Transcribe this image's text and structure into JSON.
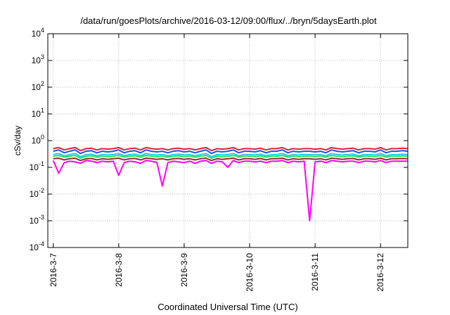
{
  "chart_data": {
    "type": "line",
    "title": "/data/run/goesPlots/archive/2016-03-12/09:00/flux/../bryn/5daysEarth.plot",
    "xlabel": "Coordinated Universal Time (UTC)",
    "ylabel": "cSv/day",
    "yscale": "log",
    "ylim": [
      0.0001,
      10000
    ],
    "xlim": [
      "2016-03-06T22:00",
      "2016-03-12T10:00"
    ],
    "grid": true,
    "legend": "none",
    "y_ticks": [
      {
        "base": "10",
        "exp": "-4",
        "value": 0.0001
      },
      {
        "base": "10",
        "exp": "-3",
        "value": 0.001
      },
      {
        "base": "10",
        "exp": "-2",
        "value": 0.01
      },
      {
        "base": "10",
        "exp": "-1",
        "value": 0.1
      },
      {
        "base": "10",
        "exp": "0",
        "value": 1
      },
      {
        "base": "10",
        "exp": "1",
        "value": 10
      },
      {
        "base": "10",
        "exp": "2",
        "value": 100
      },
      {
        "base": "10",
        "exp": "3",
        "value": 1000
      },
      {
        "base": "10",
        "exp": "4",
        "value": 10000
      }
    ],
    "x_ticks": [
      {
        "label": "2016-3-7",
        "date": "2016-03-07T00:00"
      },
      {
        "label": "2016-3-8",
        "date": "2016-03-08T00:00"
      },
      {
        "label": "2016-3-9",
        "date": "2016-03-09T00:00"
      },
      {
        "label": "2016-3-10",
        "date": "2016-03-10T00:00"
      },
      {
        "label": "2016-3-11",
        "date": "2016-03-11T00:00"
      },
      {
        "label": "2016-3-12",
        "date": "2016-03-12T00:00"
      }
    ],
    "x": [
      "2016-03-07T00:00",
      "2016-03-07T02:00",
      "2016-03-07T04:00",
      "2016-03-07T06:00",
      "2016-03-07T08:00",
      "2016-03-07T10:00",
      "2016-03-07T12:00",
      "2016-03-07T14:00",
      "2016-03-07T16:00",
      "2016-03-07T18:00",
      "2016-03-07T20:00",
      "2016-03-07T22:00",
      "2016-03-08T00:00",
      "2016-03-08T02:00",
      "2016-03-08T04:00",
      "2016-03-08T06:00",
      "2016-03-08T08:00",
      "2016-03-08T10:00",
      "2016-03-08T12:00",
      "2016-03-08T14:00",
      "2016-03-08T16:00",
      "2016-03-08T18:00",
      "2016-03-08T20:00",
      "2016-03-08T22:00",
      "2016-03-09T00:00",
      "2016-03-09T02:00",
      "2016-03-09T04:00",
      "2016-03-09T06:00",
      "2016-03-09T08:00",
      "2016-03-09T10:00",
      "2016-03-09T12:00",
      "2016-03-09T14:00",
      "2016-03-09T16:00",
      "2016-03-09T18:00",
      "2016-03-09T20:00",
      "2016-03-09T22:00",
      "2016-03-10T00:00",
      "2016-03-10T02:00",
      "2016-03-10T04:00",
      "2016-03-10T06:00",
      "2016-03-10T08:00",
      "2016-03-10T10:00",
      "2016-03-10T12:00",
      "2016-03-10T14:00",
      "2016-03-10T16:00",
      "2016-03-10T18:00",
      "2016-03-10T20:00",
      "2016-03-10T22:00",
      "2016-03-11T00:00",
      "2016-03-11T02:00",
      "2016-03-11T04:00",
      "2016-03-11T06:00",
      "2016-03-11T08:00",
      "2016-03-11T10:00",
      "2016-03-11T12:00",
      "2016-03-11T14:00",
      "2016-03-11T16:00",
      "2016-03-11T18:00",
      "2016-03-11T20:00",
      "2016-03-11T22:00",
      "2016-03-12T00:00",
      "2016-03-12T02:00",
      "2016-03-12T04:00",
      "2016-03-12T06:00",
      "2016-03-12T08:00",
      "2016-03-12T10:00"
    ],
    "series": [
      {
        "color": "#e0203a",
        "values": [
          0.5,
          0.55,
          0.45,
          0.5,
          0.55,
          0.42,
          0.5,
          0.52,
          0.45,
          0.5,
          0.48,
          0.5,
          0.55,
          0.45,
          0.5,
          0.52,
          0.45,
          0.55,
          0.5,
          0.48,
          0.5,
          0.45,
          0.5,
          0.52,
          0.48,
          0.5,
          0.45,
          0.5,
          0.55,
          0.42,
          0.5,
          0.48,
          0.5,
          0.55,
          0.45,
          0.5,
          0.5,
          0.48,
          0.52,
          0.45,
          0.5,
          0.5,
          0.55,
          0.45,
          0.5,
          0.48,
          0.5,
          0.5,
          0.48,
          0.5,
          0.45,
          0.55,
          0.5,
          0.48,
          0.5,
          0.52,
          0.45,
          0.5,
          0.5,
          0.48,
          0.55,
          0.45,
          0.5,
          0.5,
          0.52,
          0.5
        ]
      },
      {
        "color": "#2050e0",
        "values": [
          0.4,
          0.45,
          0.35,
          0.4,
          0.45,
          0.33,
          0.4,
          0.42,
          0.35,
          0.4,
          0.38,
          0.4,
          0.45,
          0.35,
          0.4,
          0.42,
          0.35,
          0.45,
          0.4,
          0.38,
          0.4,
          0.35,
          0.4,
          0.42,
          0.38,
          0.4,
          0.35,
          0.4,
          0.45,
          0.33,
          0.4,
          0.38,
          0.4,
          0.45,
          0.35,
          0.4,
          0.4,
          0.38,
          0.42,
          0.35,
          0.4,
          0.4,
          0.45,
          0.35,
          0.4,
          0.38,
          0.4,
          0.4,
          0.38,
          0.4,
          0.35,
          0.45,
          0.4,
          0.38,
          0.4,
          0.42,
          0.35,
          0.4,
          0.4,
          0.38,
          0.45,
          0.35,
          0.4,
          0.4,
          0.42,
          0.4
        ]
      },
      {
        "color": "#20d0e0",
        "values": [
          0.3,
          0.33,
          0.27,
          0.3,
          0.33,
          0.25,
          0.3,
          0.31,
          0.27,
          0.3,
          0.29,
          0.3,
          0.33,
          0.27,
          0.3,
          0.31,
          0.27,
          0.33,
          0.3,
          0.29,
          0.3,
          0.27,
          0.3,
          0.31,
          0.29,
          0.3,
          0.27,
          0.3,
          0.33,
          0.25,
          0.3,
          0.29,
          0.3,
          0.33,
          0.27,
          0.3,
          0.3,
          0.29,
          0.31,
          0.27,
          0.3,
          0.3,
          0.33,
          0.27,
          0.3,
          0.29,
          0.3,
          0.3,
          0.29,
          0.3,
          0.27,
          0.33,
          0.3,
          0.29,
          0.3,
          0.31,
          0.27,
          0.3,
          0.3,
          0.29,
          0.33,
          0.27,
          0.3,
          0.3,
          0.31,
          0.3
        ]
      },
      {
        "color": "#30e060",
        "values": [
          0.26,
          0.28,
          0.24,
          0.26,
          0.28,
          0.22,
          0.26,
          0.27,
          0.24,
          0.26,
          0.25,
          0.26,
          0.28,
          0.24,
          0.26,
          0.27,
          0.24,
          0.28,
          0.26,
          0.25,
          0.26,
          0.24,
          0.26,
          0.27,
          0.25,
          0.26,
          0.24,
          0.26,
          0.28,
          0.22,
          0.26,
          0.25,
          0.26,
          0.28,
          0.24,
          0.26,
          0.26,
          0.25,
          0.27,
          0.24,
          0.26,
          0.26,
          0.28,
          0.24,
          0.26,
          0.25,
          0.26,
          0.26,
          0.25,
          0.26,
          0.24,
          0.28,
          0.26,
          0.25,
          0.26,
          0.27,
          0.24,
          0.26,
          0.26,
          0.25,
          0.28,
          0.24,
          0.26,
          0.26,
          0.27,
          0.26
        ]
      },
      {
        "color": "#8a3030",
        "values": [
          0.21,
          0.22,
          0.19,
          0.21,
          0.22,
          0.18,
          0.21,
          0.215,
          0.19,
          0.21,
          0.2,
          0.21,
          0.22,
          0.19,
          0.21,
          0.215,
          0.19,
          0.22,
          0.21,
          0.2,
          0.21,
          0.19,
          0.21,
          0.215,
          0.2,
          0.21,
          0.19,
          0.21,
          0.22,
          0.18,
          0.21,
          0.2,
          0.21,
          0.22,
          0.19,
          0.21,
          0.21,
          0.2,
          0.215,
          0.19,
          0.21,
          0.21,
          0.22,
          0.19,
          0.21,
          0.2,
          0.21,
          0.21,
          0.2,
          0.21,
          0.19,
          0.22,
          0.21,
          0.2,
          0.21,
          0.215,
          0.19,
          0.21,
          0.21,
          0.2,
          0.22,
          0.19,
          0.21,
          0.21,
          0.215,
          0.21
        ]
      },
      {
        "color": "#ff00ff",
        "values": [
          0.18,
          0.06,
          0.15,
          0.17,
          0.16,
          0.14,
          0.18,
          0.17,
          0.15,
          0.17,
          0.16,
          0.17,
          0.05,
          0.15,
          0.17,
          0.16,
          0.14,
          0.18,
          0.17,
          0.15,
          0.02,
          0.15,
          0.17,
          0.16,
          0.15,
          0.17,
          0.14,
          0.17,
          0.18,
          0.14,
          0.17,
          0.16,
          0.1,
          0.18,
          0.15,
          0.17,
          0.17,
          0.16,
          0.17,
          0.15,
          0.17,
          0.17,
          0.18,
          0.15,
          0.17,
          0.16,
          0.17,
          0.001,
          0.16,
          0.17,
          0.15,
          0.18,
          0.17,
          0.16,
          0.17,
          0.17,
          0.15,
          0.17,
          0.17,
          0.16,
          0.18,
          0.15,
          0.17,
          0.17,
          0.17,
          0.17
        ]
      }
    ]
  }
}
